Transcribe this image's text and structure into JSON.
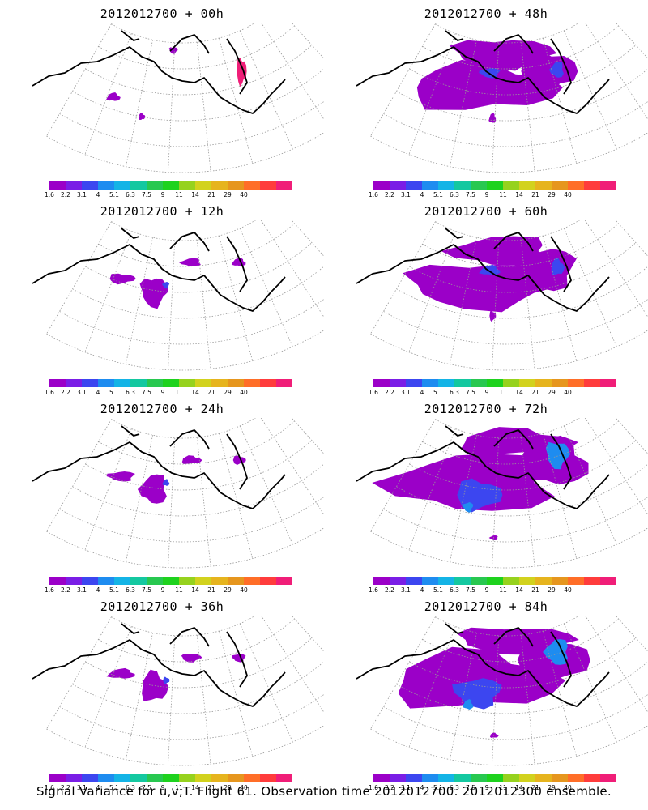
{
  "panels": [
    {
      "title": "2012012700 + 00h",
      "variance_level": "minimal"
    },
    {
      "title": "2012012700 + 48h",
      "variance_level": "moderate"
    },
    {
      "title": "2012012700 + 12h",
      "variance_level": "low"
    },
    {
      "title": "2012012700 + 60h",
      "variance_level": "moderate"
    },
    {
      "title": "2012012700 + 24h",
      "variance_level": "low"
    },
    {
      "title": "2012012700 + 72h",
      "variance_level": "high"
    },
    {
      "title": "2012012700 + 36h",
      "variance_level": "low"
    },
    {
      "title": "2012012700 + 84h",
      "variance_level": "high"
    }
  ],
  "colorbar": {
    "colors": [
      "#9b00c8",
      "#7a1ee6",
      "#3c46f0",
      "#1e8cf0",
      "#14b4e6",
      "#14c8a0",
      "#28c850",
      "#1ed21e",
      "#96d21e",
      "#d2d21e",
      "#e6b41e",
      "#e6961e",
      "#ff6e28",
      "#ff3c3c",
      "#f01e78"
    ],
    "labels": [
      "1.6",
      "2.2",
      "3.1",
      "4",
      "5.1",
      "6.3",
      "7.5",
      "9",
      "11",
      "14",
      "21",
      "29",
      "40"
    ]
  },
  "caption": "Signal Variance for u,v,T. Flight 61. Observation time 2012012700. 2012012300 ensemble."
}
